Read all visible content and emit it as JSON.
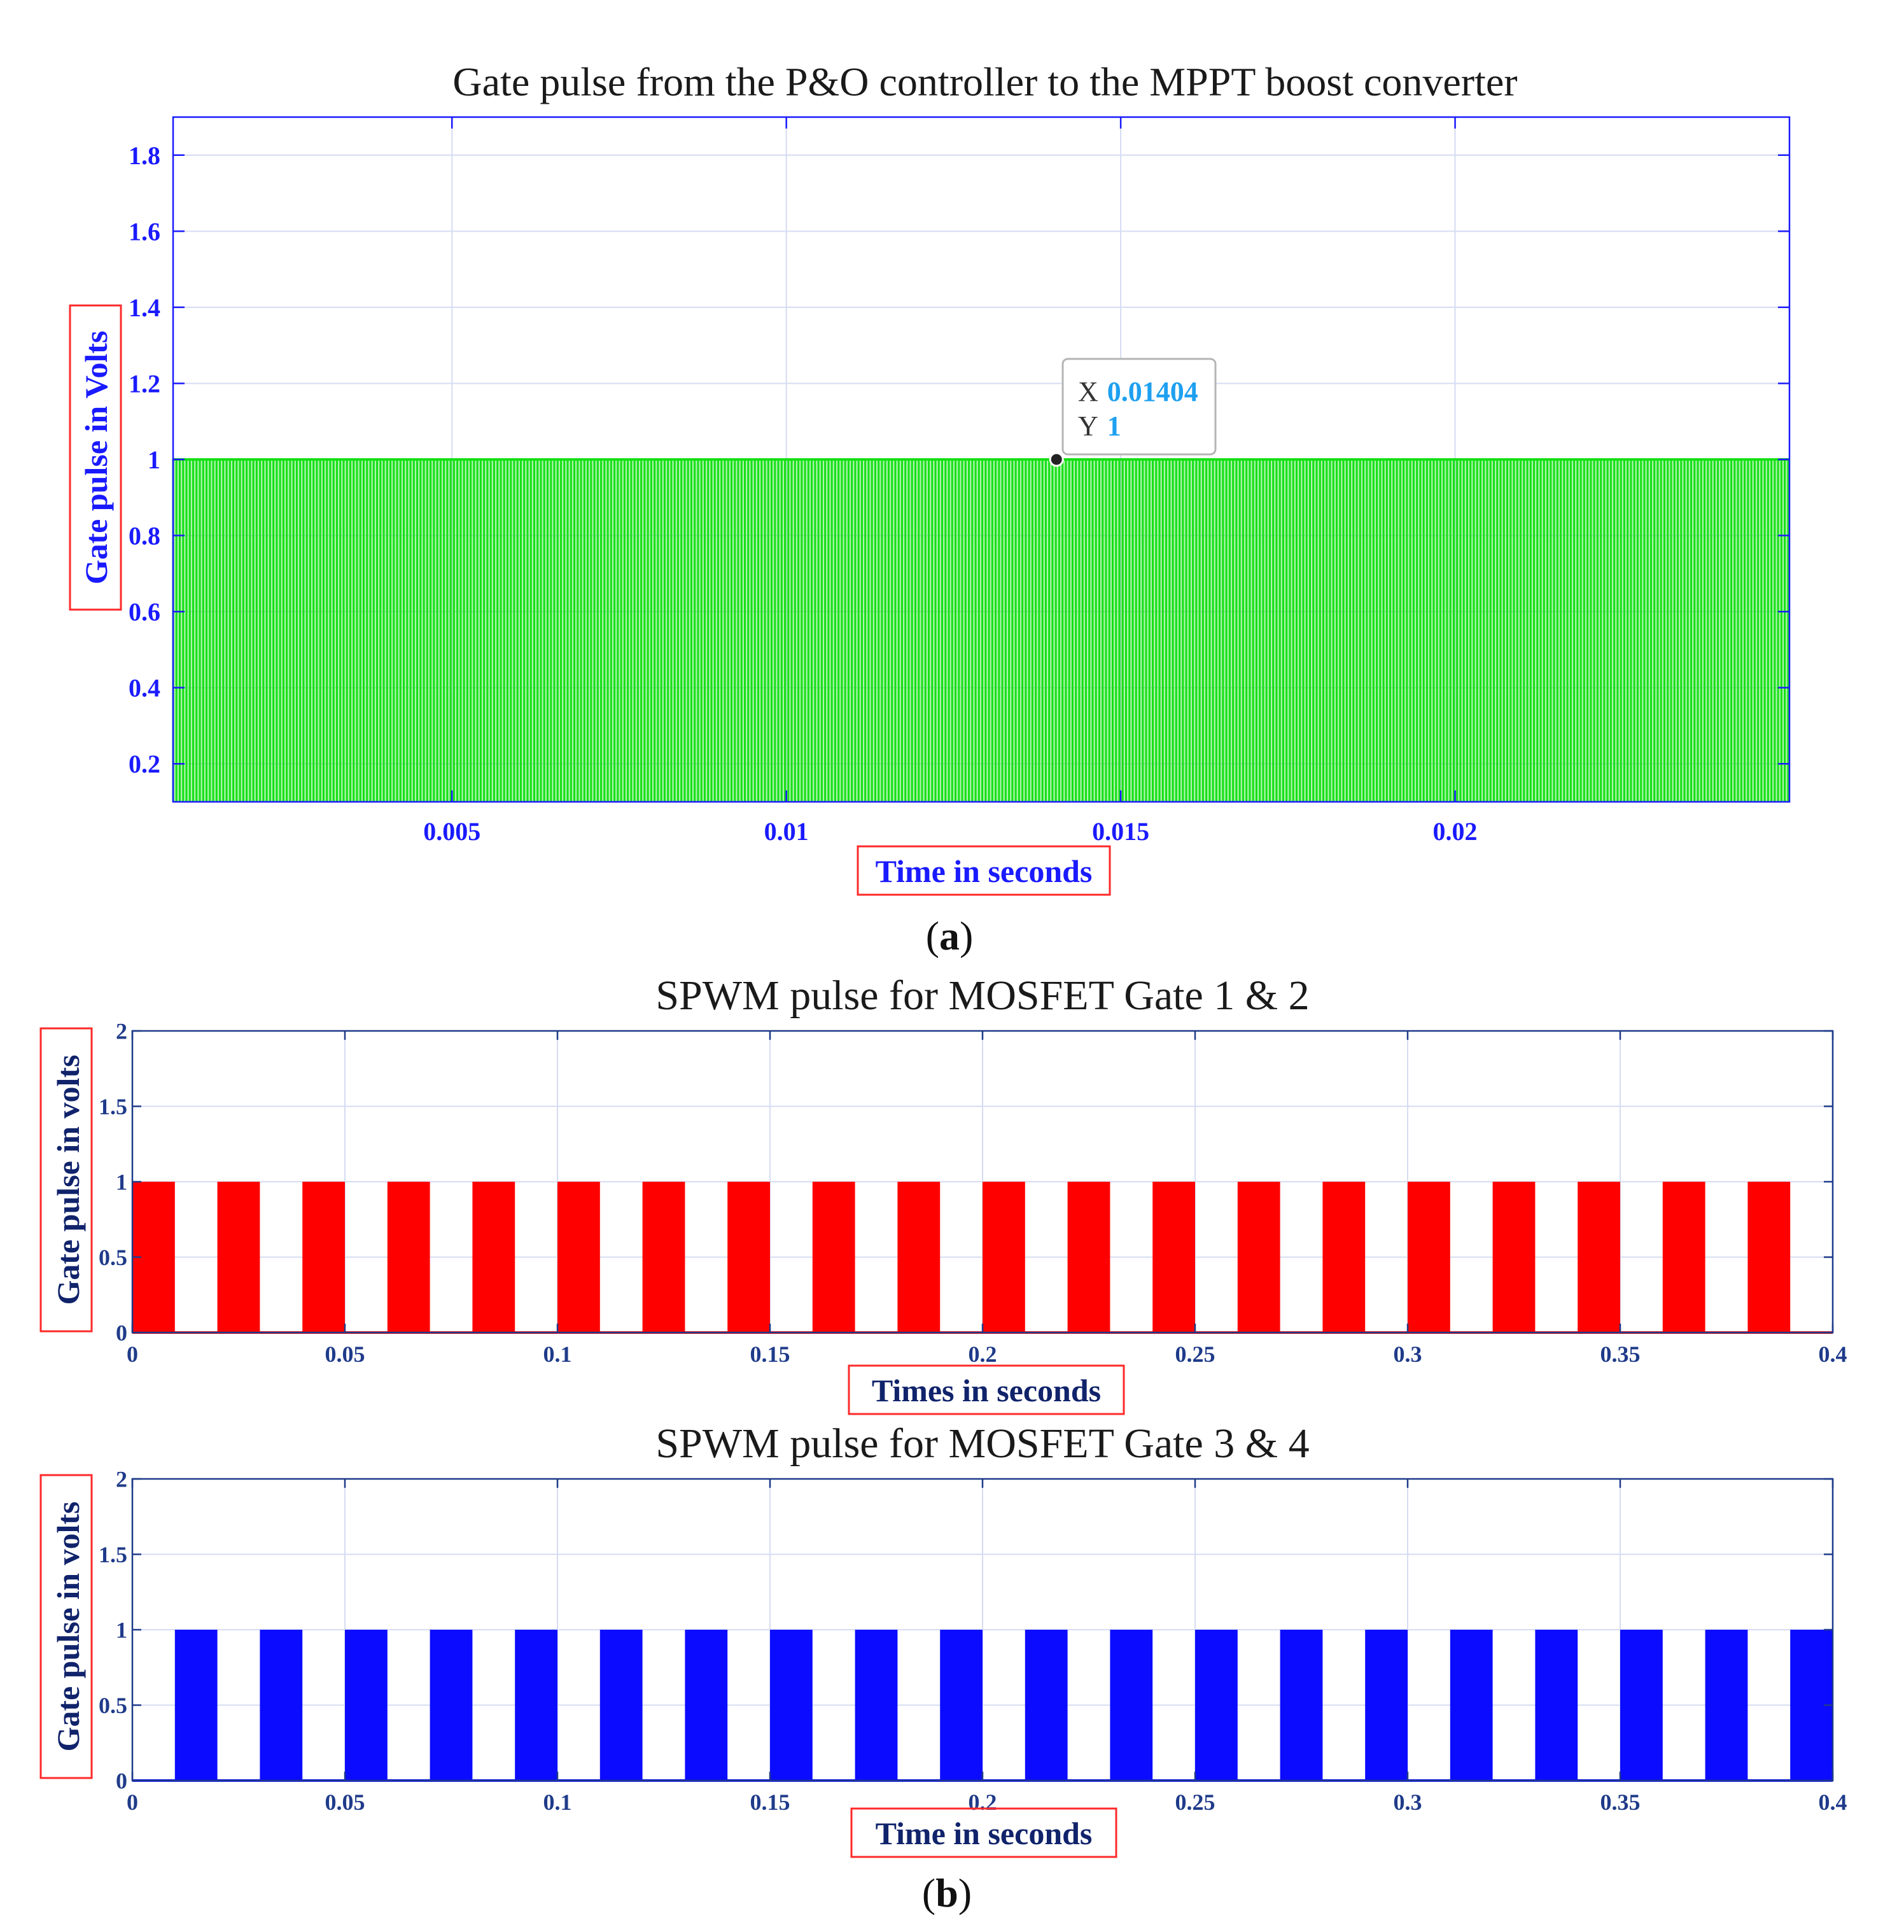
{
  "colors": {
    "axis_blue": "#1a1aff",
    "axis_dark": "#1f3b8a",
    "label_navy": "#10236b",
    "grid": "#d6dcf2",
    "box_red": "#ff2a2a",
    "green": "#16e016",
    "red": "#ff0000",
    "blue": "#0b0bff",
    "datatip_value": "#1ea0f0"
  },
  "panel_a": {
    "title": "Gate pulse from the P&O controller to the MPPT boost converter",
    "xlabel": "Time in seconds",
    "ylabel": "Gate pulse  in Volts",
    "caption_letter": "a",
    "datatip": {
      "x_label": "X",
      "x_value": "0.01404",
      "y_label": "Y",
      "y_value": "1"
    }
  },
  "panel_b": {
    "caption_letter": "b"
  },
  "chart_data": [
    {
      "id": "gate-pulse-mppt",
      "type": "line",
      "title": "Gate pulse from the P&O controller to the MPPT boost converter",
      "xlabel": "Time in seconds",
      "ylabel": "Gate pulse  in Volts",
      "xlim": [
        0.00083,
        0.025
      ],
      "ylim": [
        0.1,
        1.9
      ],
      "xticks": [
        0.005,
        0.01,
        0.015,
        0.02
      ],
      "xtick_labels": [
        "0.005",
        "0.01",
        "0.015",
        "0.02"
      ],
      "yticks": [
        0.2,
        0.4,
        0.6,
        0.8,
        1,
        1.2,
        1.4,
        1.6,
        1.8
      ],
      "ytick_labels": [
        "0.2",
        "0.4",
        "0.6",
        "0.8",
        "1",
        "1.2",
        "1.4",
        "1.6",
        "1.8"
      ],
      "grid": true,
      "series": [
        {
          "name": "Gate pulse",
          "color": "#16e016",
          "waveform": "square",
          "low": 0,
          "high": 1,
          "t_start": 0.00083,
          "t_end": 0.025,
          "period": 0.0001,
          "duty": 0.5
        }
      ],
      "annotations": [
        {
          "type": "datatip",
          "x": 0.01404,
          "y": 1
        }
      ]
    },
    {
      "id": "spwm-gate-1-2",
      "type": "line",
      "title": "SPWM  pulse for MOSFET Gate 1 & 2",
      "xlabel": "Times in seconds",
      "ylabel": "Gate pulse in volts",
      "xlim": [
        0,
        0.4
      ],
      "ylim": [
        0,
        2
      ],
      "xticks": [
        0,
        0.05,
        0.1,
        0.15,
        0.2,
        0.25,
        0.3,
        0.35,
        0.4
      ],
      "xtick_labels": [
        "0",
        "0.05",
        "0.1",
        "0.15",
        "0.2",
        "0.25",
        "0.3",
        "0.35",
        "0.4"
      ],
      "yticks": [
        0,
        0.5,
        1,
        1.5,
        2
      ],
      "ytick_labels": [
        "0",
        "0.5",
        "1",
        "1.5",
        "2"
      ],
      "grid": true,
      "series": [
        {
          "name": "Gate 1 & 2",
          "color": "#ff0000",
          "pulse_width": 0.01,
          "high": 1,
          "pulses_start": [
            0,
            0.02,
            0.04,
            0.06,
            0.08,
            0.1,
            0.12,
            0.14,
            0.16,
            0.18,
            0.2,
            0.22,
            0.24,
            0.26,
            0.28,
            0.3,
            0.32,
            0.34,
            0.36,
            0.38
          ]
        }
      ]
    },
    {
      "id": "spwm-gate-3-4",
      "type": "line",
      "title": "SPWM  pulse for MOSFET Gate 3 & 4",
      "xlabel": "Time in seconds",
      "ylabel": "Gate pulse in volts",
      "xlim": [
        0,
        0.4
      ],
      "ylim": [
        0,
        2
      ],
      "xticks": [
        0,
        0.05,
        0.1,
        0.15,
        0.2,
        0.25,
        0.3,
        0.35,
        0.4
      ],
      "xtick_labels": [
        "0",
        "0.05",
        "0.1",
        "0.15",
        "0.2",
        "0.25",
        "0.3",
        "0.35",
        "0.4"
      ],
      "yticks": [
        0,
        0.5,
        1,
        1.5,
        2
      ],
      "ytick_labels": [
        "0",
        "0.5",
        "1",
        "1.5",
        "2"
      ],
      "grid": true,
      "series": [
        {
          "name": "Gate 3 & 4",
          "color": "#0b0bff",
          "pulse_width": 0.01,
          "high": 1,
          "pulses_start": [
            0.01,
            0.03,
            0.05,
            0.07,
            0.09,
            0.11,
            0.13,
            0.15,
            0.17,
            0.19,
            0.21,
            0.23,
            0.25,
            0.27,
            0.29,
            0.31,
            0.33,
            0.35,
            0.37,
            0.39
          ]
        }
      ]
    }
  ]
}
